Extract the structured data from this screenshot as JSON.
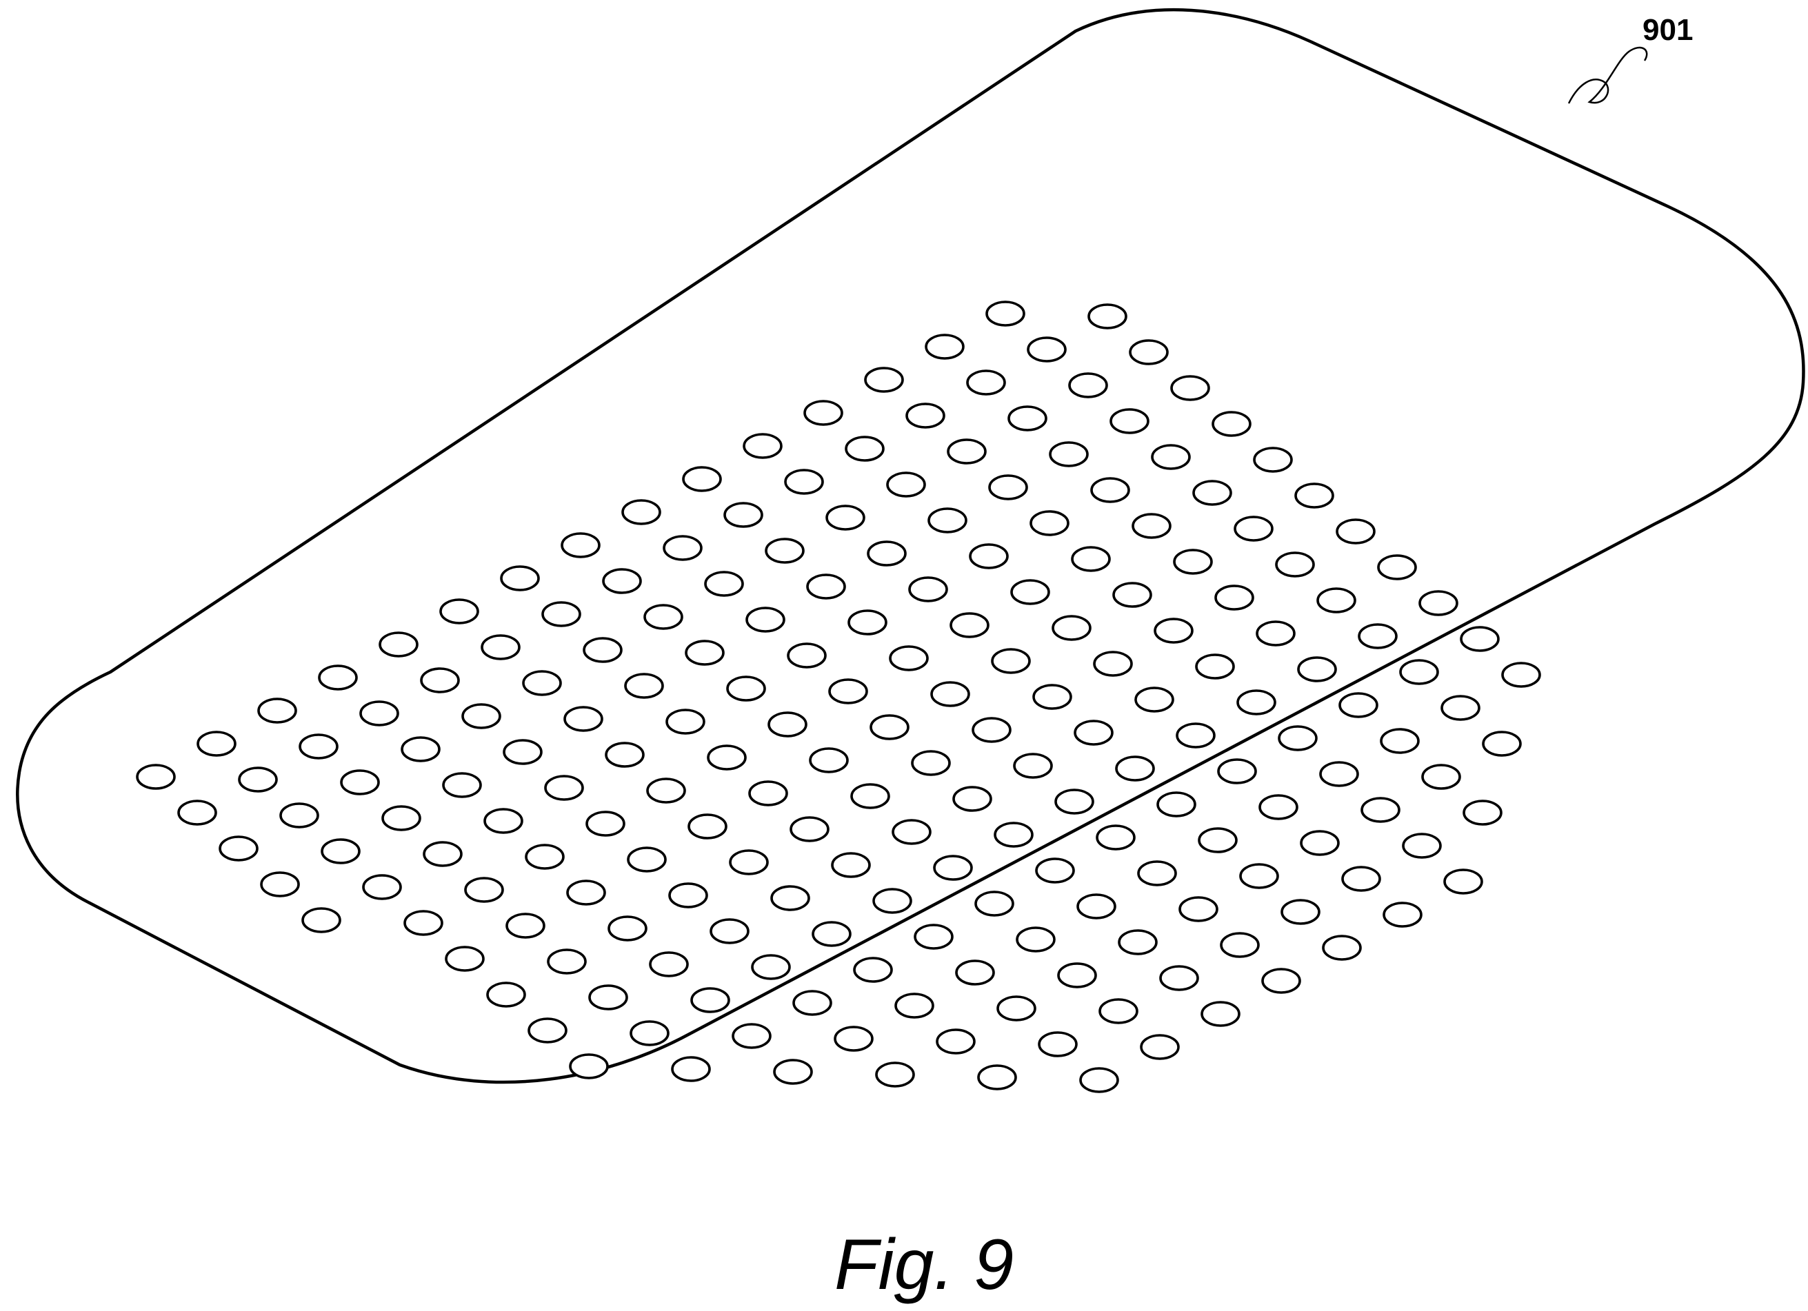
{
  "figure": {
    "reference_label": "901",
    "caption": "Fig. 9"
  }
}
